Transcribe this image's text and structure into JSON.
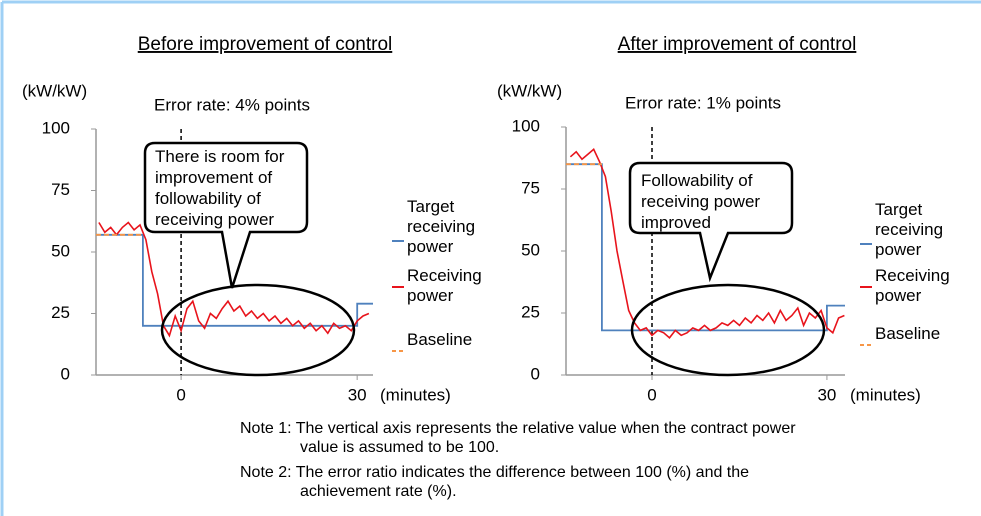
{
  "chart_data": [
    {
      "type": "line",
      "title": "Before improvement of control",
      "subtitle": "Error rate: 4% points",
      "y_label": "(kW/kW)",
      "x_label": "(minutes)",
      "annotation": "There is room for improvement of followability of receiving power",
      "xlim": [
        -14.5,
        32.7
      ],
      "xticks": [
        0,
        30
      ],
      "ylim": [
        0,
        100
      ],
      "yticks": [
        0,
        25,
        50,
        75,
        100
      ],
      "series": [
        {
          "name": "Target receiving power",
          "color": "#4f81bd",
          "x": [
            -14.5,
            -6.5,
            -6.5,
            30,
            30,
            32.7
          ],
          "values": [
            57,
            57,
            20,
            20,
            29,
            29
          ]
        },
        {
          "name": "Receiving power",
          "color": "#e8141c",
          "x": [
            -14,
            -13,
            -12,
            -11,
            -10,
            -9,
            -8,
            -7,
            -6,
            -5,
            -4,
            -3,
            -2,
            -1,
            0,
            1,
            2,
            3,
            4,
            5,
            6,
            7,
            8,
            9,
            10,
            11,
            12,
            13,
            14,
            15,
            16,
            17,
            18,
            19,
            20,
            21,
            22,
            23,
            24,
            25,
            26,
            27,
            28,
            29,
            30,
            31,
            32
          ],
          "values": [
            62,
            58,
            60,
            57,
            60,
            62,
            59,
            61,
            55,
            42,
            33,
            20,
            16,
            24,
            18,
            27,
            30,
            22,
            19,
            25,
            23,
            27,
            30,
            26,
            28,
            24,
            26,
            23,
            25,
            22,
            24,
            21,
            23,
            20,
            22,
            19,
            21,
            18,
            20,
            17,
            21,
            19,
            20,
            18,
            22,
            24,
            25
          ]
        },
        {
          "name": "Baseline",
          "color": "#f79646",
          "dashed": true,
          "x": [
            -14.5,
            -6.5
          ],
          "values": [
            57,
            57
          ]
        }
      ]
    },
    {
      "type": "line",
      "title": "After improvement of control",
      "subtitle": "Error rate: 1% points",
      "y_label": "(kW/kW)",
      "x_label": "(minutes)",
      "annotation": "Followability of receiving power improved",
      "xlim": [
        -14.75,
        33.1
      ],
      "xticks": [
        0,
        30
      ],
      "ylim": [
        0,
        100
      ],
      "yticks": [
        0,
        25,
        50,
        75,
        100
      ],
      "series": [
        {
          "name": "Target receiving power",
          "color": "#4f81bd",
          "x": [
            -14.75,
            -8.6,
            -8.6,
            30,
            30,
            33.1
          ],
          "values": [
            85,
            85,
            18,
            18,
            28,
            28
          ]
        },
        {
          "name": "Receiving power",
          "color": "#e8141c",
          "x": [
            -14,
            -13,
            -12,
            -11,
            -10,
            -9,
            -8,
            -7,
            -6,
            -5,
            -4,
            -3,
            -2,
            -1,
            0,
            1,
            2,
            3,
            4,
            5,
            6,
            7,
            8,
            9,
            10,
            11,
            12,
            13,
            14,
            15,
            16,
            17,
            18,
            19,
            20,
            21,
            22,
            23,
            24,
            25,
            26,
            27,
            28,
            29,
            30,
            31,
            32,
            33
          ],
          "values": [
            88,
            90,
            87,
            89,
            91,
            86,
            80,
            66,
            50,
            38,
            26,
            21,
            18,
            19,
            16,
            18,
            17,
            15,
            18,
            16,
            17,
            19,
            18,
            20,
            18,
            19,
            21,
            20,
            22,
            20,
            23,
            21,
            24,
            22,
            25,
            21,
            26,
            22,
            24,
            27,
            20,
            25,
            23,
            26,
            19,
            17,
            23,
            24
          ]
        },
        {
          "name": "Baseline",
          "color": "#f79646",
          "dashed": true,
          "x": [
            -14.75,
            -8.6
          ],
          "values": [
            85,
            85
          ]
        }
      ]
    }
  ],
  "notes": [
    "Note 1: The vertical axis represents the relative value when the contract power value is assumed to be 100.",
    "Note 2: The error ratio indicates the difference between 100 (%) and the achievement rate (%)."
  ]
}
